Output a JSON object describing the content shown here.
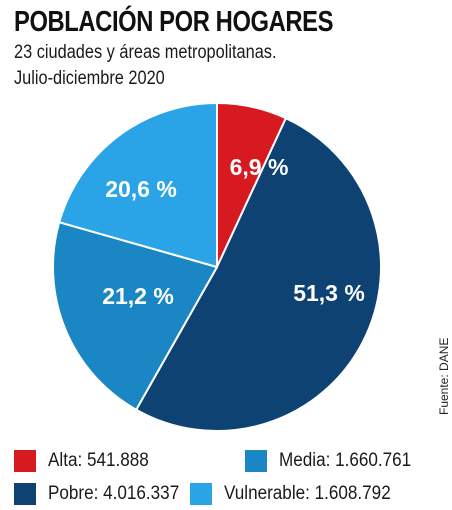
{
  "header": {
    "title": "POBLACIÓN POR HOGARES",
    "subtitle_line1": "23 ciudades y áreas metropolitanas.",
    "subtitle_line2": "Julio-diciembre 2020"
  },
  "source": "Fuente: DANE",
  "legend": [
    {
      "label": "Alta: 541.888",
      "color": "#d71920"
    },
    {
      "label": "Media: 1.660.761",
      "color": "#1b86c4"
    },
    {
      "label": "Pobre: 4.016.337",
      "color": "#0d4273"
    },
    {
      "label": "Vulnerable: 1.608.792",
      "color": "#2aa4e6"
    }
  ],
  "chart_data": {
    "type": "pie",
    "title": "POBLACIÓN POR HOGARES",
    "slices": [
      {
        "name": "Alta",
        "value": 6.9,
        "label": "6,9 %",
        "count": "541.888",
        "color": "#d71920"
      },
      {
        "name": "Pobre",
        "value": 51.3,
        "label": "51,3 %",
        "count": "4.016.337",
        "color": "#0d4273"
      },
      {
        "name": "Media",
        "value": 21.2,
        "label": "21,2 %",
        "count": "1.660.761",
        "color": "#1b86c4"
      },
      {
        "name": "Vulnerable",
        "value": 20.6,
        "label": "20,6 %",
        "count": "1.608.792",
        "color": "#2aa4e6"
      }
    ]
  }
}
